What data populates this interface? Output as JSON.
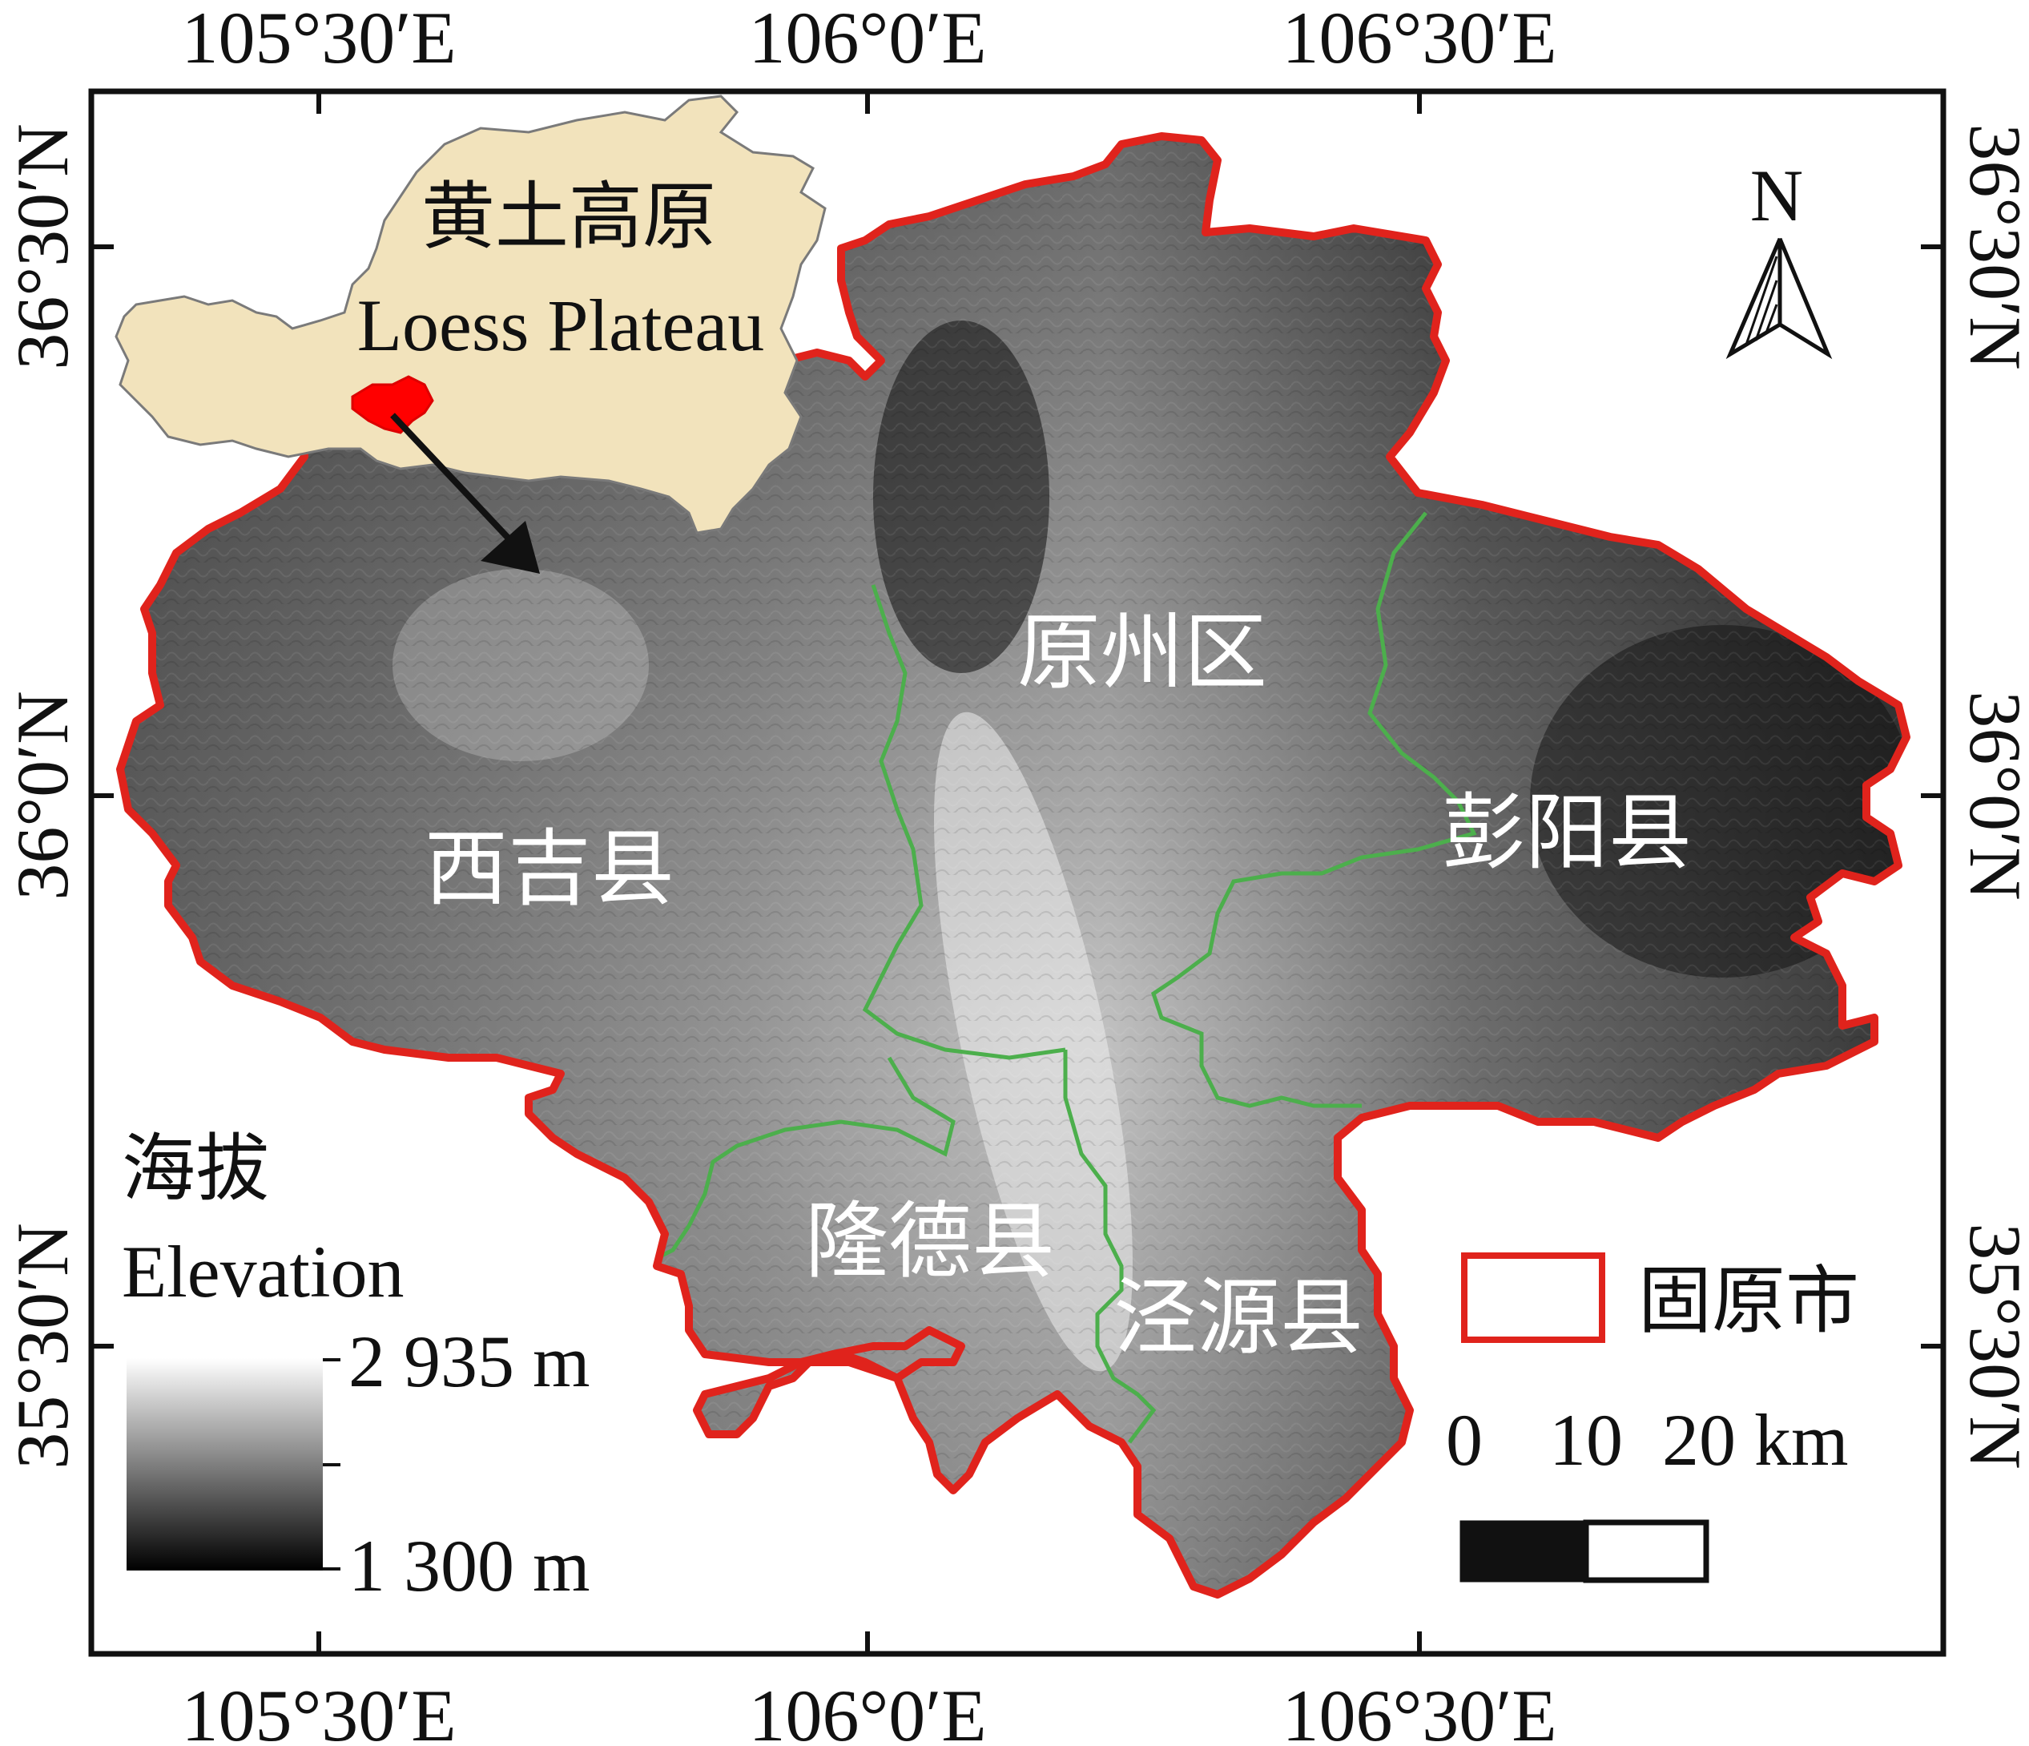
{
  "coordinates": {
    "top": [
      "105°30′E",
      "106°0′E",
      "106°30′E"
    ],
    "bottom": [
      "105°30′E",
      "106°0′E",
      "106°30′E"
    ],
    "left": [
      "36°30′N",
      "36°0′N",
      "35°30′N"
    ],
    "right": [
      "36°30′N",
      "36°0′N",
      "35°30′N"
    ]
  },
  "inset": {
    "title_cn": "黄土高原",
    "title_en": "Loess Plateau"
  },
  "north_arrow": {
    "label": "N"
  },
  "districts": [
    {
      "name": "原州区"
    },
    {
      "name": "西吉县"
    },
    {
      "name": "彭阳县"
    },
    {
      "name": "隆德县"
    },
    {
      "name": "泾源县"
    }
  ],
  "legend": {
    "elevation_cn": "海拔",
    "elevation_en": "Elevation",
    "max": "2 935 m",
    "min": "1 300 m",
    "boundary_label": "固原市",
    "boundary_color": "#e0231c"
  },
  "scale_bar": {
    "labels": [
      "0",
      "10",
      "20 km"
    ]
  },
  "colors": {
    "boundary": "#e0231c",
    "county_line": "#4caf4c",
    "inset_fill": "#f2e3bc",
    "highlight": "#ff0000"
  }
}
